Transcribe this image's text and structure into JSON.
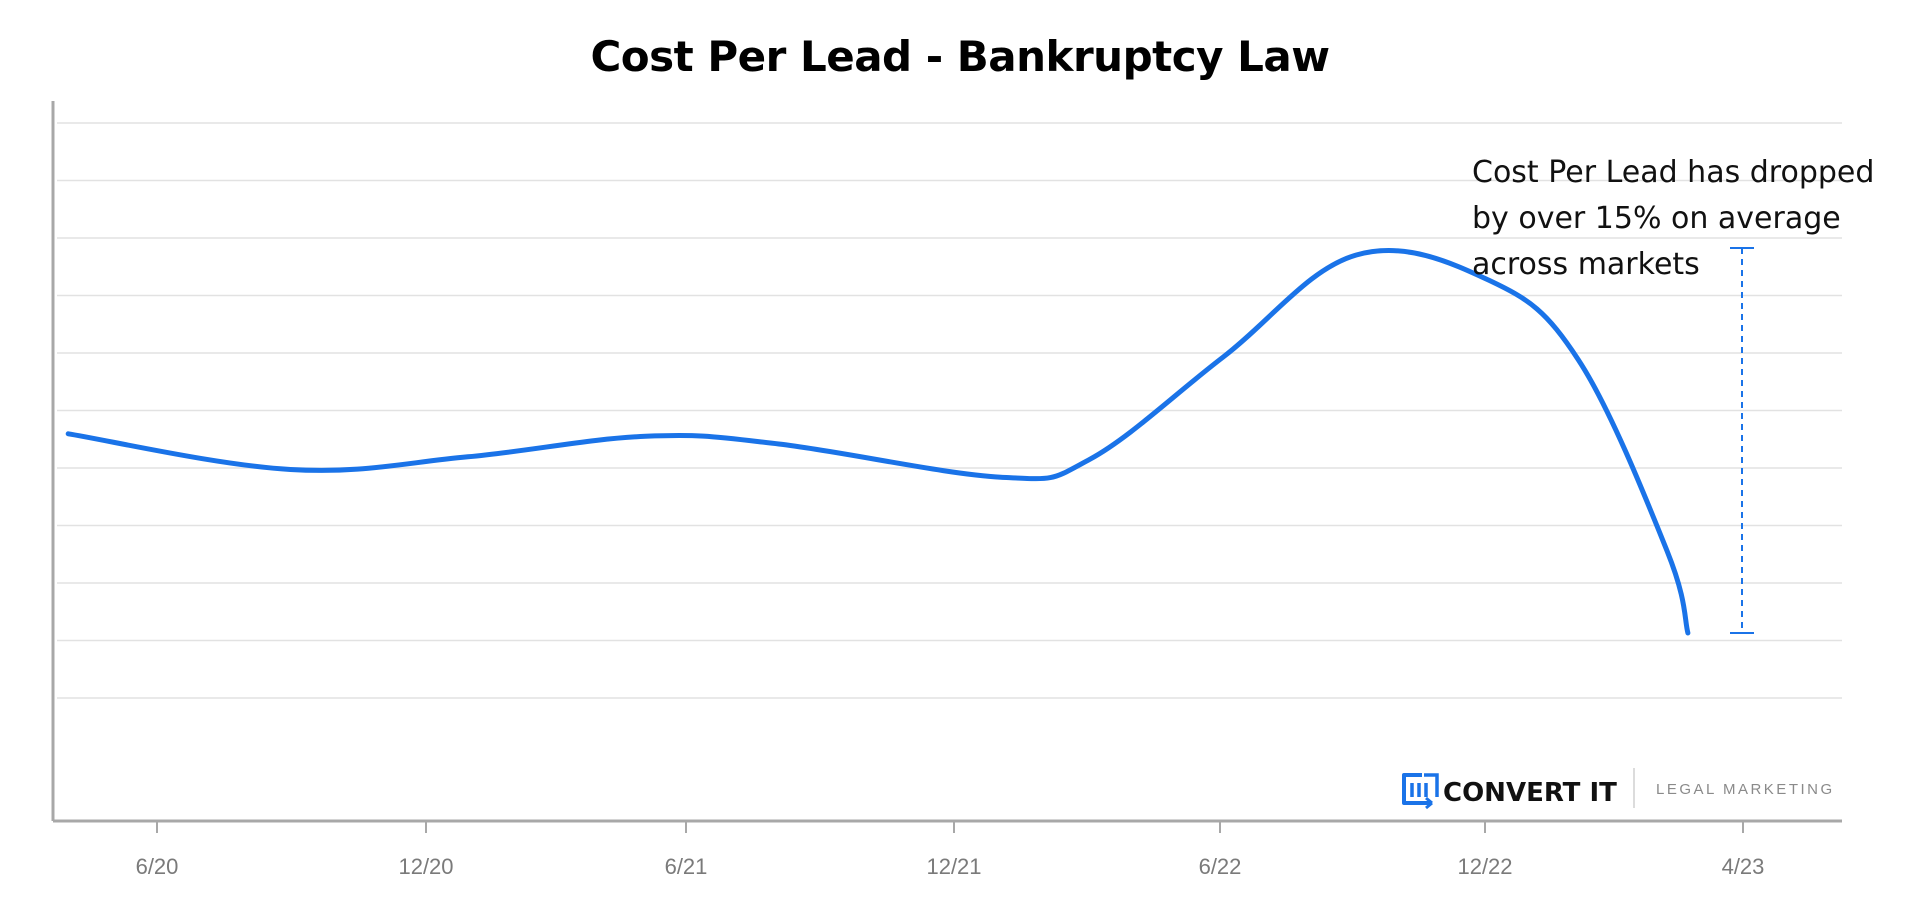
{
  "chart_data": {
    "type": "line",
    "title": "Cost Per Lead - Bankruptcy Law",
    "xlabel": "",
    "ylabel": "",
    "x_ticks": [
      "6/20",
      "12/20",
      "6/21",
      "12/21",
      "6/22",
      "12/22",
      "4/23"
    ],
    "grid": true,
    "y_tick_labels_shown": false,
    "series": [
      {
        "values": [
          {
            "x": "2020-04",
            "y": 3.55
          },
          {
            "x": "2020-09",
            "y": 2.85
          },
          {
            "x": "2021-01",
            "y": 3.1
          },
          {
            "x": "2021-05",
            "y": 3.5
          },
          {
            "x": "2021-08",
            "y": 3.35
          },
          {
            "x": "2022-01",
            "y": 2.7
          },
          {
            "x": "2022-03",
            "y": 3.05
          },
          {
            "x": "2022-06",
            "y": 5.05
          },
          {
            "x": "2022-09",
            "y": 7.05
          },
          {
            "x": "2022-12",
            "y": 6.55
          },
          {
            "x": "2023-02",
            "y": 5.0
          },
          {
            "x": "2023-04",
            "y": 1.25
          },
          {
            "x": "2023-04-15",
            "y": -0.35
          }
        ]
      }
    ],
    "annotation": {
      "lines": [
        "Cost Per Lead has dropped",
        "by over 15% on average",
        "across markets"
      ]
    }
  },
  "colors": {
    "line": "#1a73e8",
    "grid": "#e2e2e2",
    "axis": "#a8a8a8",
    "tick_text": "#7a7a7a"
  },
  "branding": {
    "name": "CONVERT IT",
    "tagline": "LEGAL MARKETING",
    "icon": "convert-it-logo-icon"
  }
}
